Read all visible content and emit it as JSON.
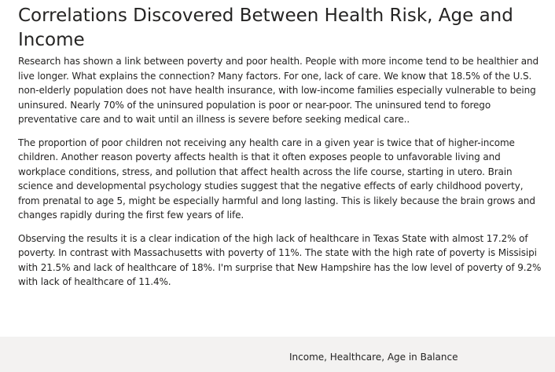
{
  "article": {
    "title": "Correlations Discovered Between Health Risk, Age and Income",
    "paragraphs": [
      "Research has shown a link between poverty and poor health. People with more income tend to be healthier and live longer. What explains the connection? Many factors. For one, lack of care. We know that 18.5% of the U.S. non-elderly population does not have health insurance, with low-income families especially vulnerable to being uninsured. Nearly 70% of the uninsured population is poor or near-poor. The uninsured tend to forego preventative care and to wait until an illness is severe before seeking medical care..",
      "The proportion of poor children not receiving any health care in a given year is twice that of higher-income children. Another reason poverty affects health is that it often exposes people to unfavorable living and workplace conditions, stress, and pollution that affect health across the life course, starting in utero. Brain science and developmental psychology studies suggest that the negative effects of early childhood poverty, from prenatal to age 5, might be especially harmful and long lasting. This is likely because the brain grows and changes rapidly during the first few years of life.",
      "Observing the results it is a clear indication of the high lack of healthcare in Texas State with almost 17.2% of poverty. In contrast with Massachusetts with poverty of 11%. The state with the high rate of poverty is Missisipi with 21.5% and lack of healthcare of 18%. I'm surprise that New Hampshire has the low level of poverty of 9.2% with lack of healthcare of 11.4%."
    ]
  },
  "footer": {
    "label": "Income, Healthcare, Age in Balance"
  }
}
